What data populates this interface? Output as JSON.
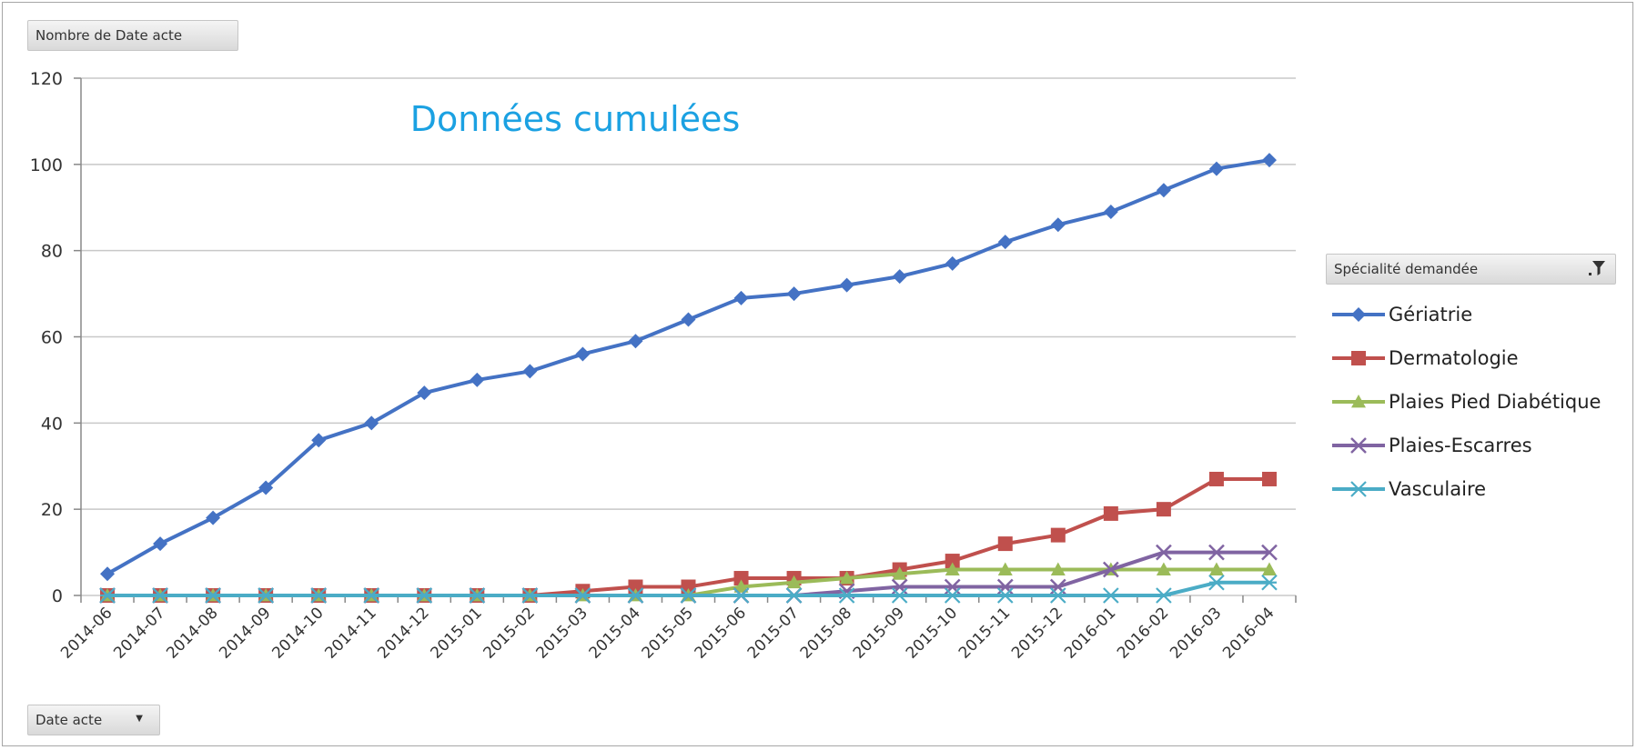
{
  "pivot_fields": {
    "values": "Nombre de Date acte",
    "axis": "Date acte",
    "legend": "Spécialité demandée"
  },
  "chart_data": {
    "type": "line",
    "title": "Données cumulées",
    "xlabel": "",
    "ylabel": "",
    "ylim": [
      0,
      120
    ],
    "yticks": [
      0,
      20,
      40,
      60,
      80,
      100,
      120
    ],
    "grid": true,
    "legend_position": "right",
    "categories": [
      "2014-06",
      "2014-07",
      "2014-08",
      "2014-09",
      "2014-10",
      "2014-11",
      "2014-12",
      "2015-01",
      "2015-02",
      "2015-03",
      "2015-04",
      "2015-05",
      "2015-06",
      "2015-07",
      "2015-08",
      "2015-09",
      "2015-10",
      "2015-11",
      "2015-12",
      "2016-01",
      "2016-02",
      "2016-03",
      "2016-04"
    ],
    "series": [
      {
        "name": "Gériatrie",
        "color": "#4472c4",
        "marker": "diamond",
        "values": [
          5,
          12,
          18,
          25,
          36,
          40,
          47,
          50,
          52,
          56,
          59,
          64,
          69,
          70,
          72,
          74,
          77,
          82,
          86,
          89,
          94,
          99,
          101
        ]
      },
      {
        "name": "Dermatologie",
        "color": "#c0504d",
        "marker": "square",
        "values": [
          0,
          0,
          0,
          0,
          0,
          0,
          0,
          0,
          0,
          1,
          2,
          2,
          4,
          4,
          4,
          6,
          8,
          12,
          14,
          19,
          20,
          27,
          27
        ]
      },
      {
        "name": "Plaies Pied Diabétique",
        "color": "#9bbb59",
        "marker": "triangle",
        "values": [
          0,
          0,
          0,
          0,
          0,
          0,
          0,
          0,
          0,
          0,
          0,
          0,
          2,
          3,
          4,
          5,
          6,
          6,
          6,
          6,
          6,
          6,
          6
        ]
      },
      {
        "name": "Plaies-Escarres",
        "color": "#8064a2",
        "marker": "x",
        "values": [
          0,
          0,
          0,
          0,
          0,
          0,
          0,
          0,
          0,
          0,
          0,
          0,
          0,
          0,
          1,
          2,
          2,
          2,
          2,
          6,
          10,
          10,
          10
        ]
      },
      {
        "name": "Vasculaire",
        "color": "#4bacc6",
        "marker": "star",
        "values": [
          0,
          0,
          0,
          0,
          0,
          0,
          0,
          0,
          0,
          0,
          0,
          0,
          0,
          0,
          0,
          0,
          0,
          0,
          0,
          0,
          0,
          3,
          3
        ]
      }
    ]
  }
}
